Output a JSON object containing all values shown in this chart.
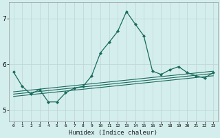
{
  "xlabel": "Humidex (Indice chaleur)",
  "ylabel": "",
  "bg_color": "#d4eeee",
  "grid_color": "#c0d8d8",
  "line_color": "#1a6b5a",
  "xlim": [
    -0.5,
    23.5
  ],
  "ylim": [
    4.75,
    7.35
  ],
  "xticks": [
    0,
    1,
    2,
    3,
    4,
    5,
    6,
    7,
    8,
    9,
    10,
    11,
    12,
    13,
    14,
    15,
    16,
    17,
    18,
    19,
    20,
    21,
    22,
    23
  ],
  "yticks": [
    5,
    6,
    7
  ],
  "main_x": [
    0,
    1,
    2,
    3,
    4,
    5,
    6,
    7,
    8,
    9,
    10,
    11,
    12,
    13,
    14,
    15,
    16,
    17,
    18,
    19,
    20,
    21,
    22,
    23
  ],
  "main_y": [
    5.83,
    5.52,
    5.35,
    5.45,
    5.18,
    5.18,
    5.38,
    5.48,
    5.52,
    5.75,
    6.25,
    6.48,
    6.72,
    7.15,
    6.88,
    6.62,
    5.85,
    5.78,
    5.88,
    5.95,
    5.82,
    5.75,
    5.7,
    5.82
  ],
  "trend1_x": [
    0,
    23
  ],
  "trend1_y": [
    5.3,
    5.75
  ],
  "trend2_x": [
    0,
    23
  ],
  "trend2_y": [
    5.4,
    5.85
  ],
  "trend3_x": [
    0,
    23
  ],
  "trend3_y": [
    5.35,
    5.8
  ]
}
